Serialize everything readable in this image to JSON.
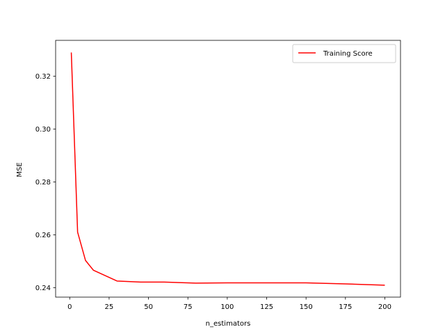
{
  "chart_data": {
    "type": "line",
    "title": "",
    "xlabel": "n_estimators",
    "ylabel": "MSE",
    "xlim": [
      -8.95,
      209.95
    ],
    "ylim": [
      0.2364,
      0.3336
    ],
    "x_ticks": [
      {
        "value": 0,
        "label": "0"
      },
      {
        "value": 25,
        "label": "25"
      },
      {
        "value": 50,
        "label": "50"
      },
      {
        "value": 75,
        "label": "75"
      },
      {
        "value": 100,
        "label": "100"
      },
      {
        "value": 125,
        "label": "125"
      },
      {
        "value": 150,
        "label": "150"
      },
      {
        "value": 175,
        "label": "175"
      },
      {
        "value": 200,
        "label": "200"
      }
    ],
    "y_ticks": [
      {
        "value": 0.24,
        "label": "0.24"
      },
      {
        "value": 0.26,
        "label": "0.26"
      },
      {
        "value": 0.28,
        "label": "0.28"
      },
      {
        "value": 0.3,
        "label": "0.30"
      },
      {
        "value": 0.32,
        "label": "0.32"
      }
    ],
    "grid": false,
    "legend_position": "top-right",
    "series": [
      {
        "name": "Training Score",
        "color": "#ff0000",
        "points": [
          {
            "x": 1,
            "y": 0.329
          },
          {
            "x": 5,
            "y": 0.261
          },
          {
            "x": 10,
            "y": 0.2503
          },
          {
            "x": 15,
            "y": 0.2466
          },
          {
            "x": 30,
            "y": 0.2425
          },
          {
            "x": 45,
            "y": 0.2421
          },
          {
            "x": 60,
            "y": 0.2421
          },
          {
            "x": 80,
            "y": 0.2417
          },
          {
            "x": 100,
            "y": 0.2418
          },
          {
            "x": 150,
            "y": 0.2418
          },
          {
            "x": 175,
            "y": 0.2414
          },
          {
            "x": 200,
            "y": 0.2409
          }
        ]
      }
    ]
  }
}
